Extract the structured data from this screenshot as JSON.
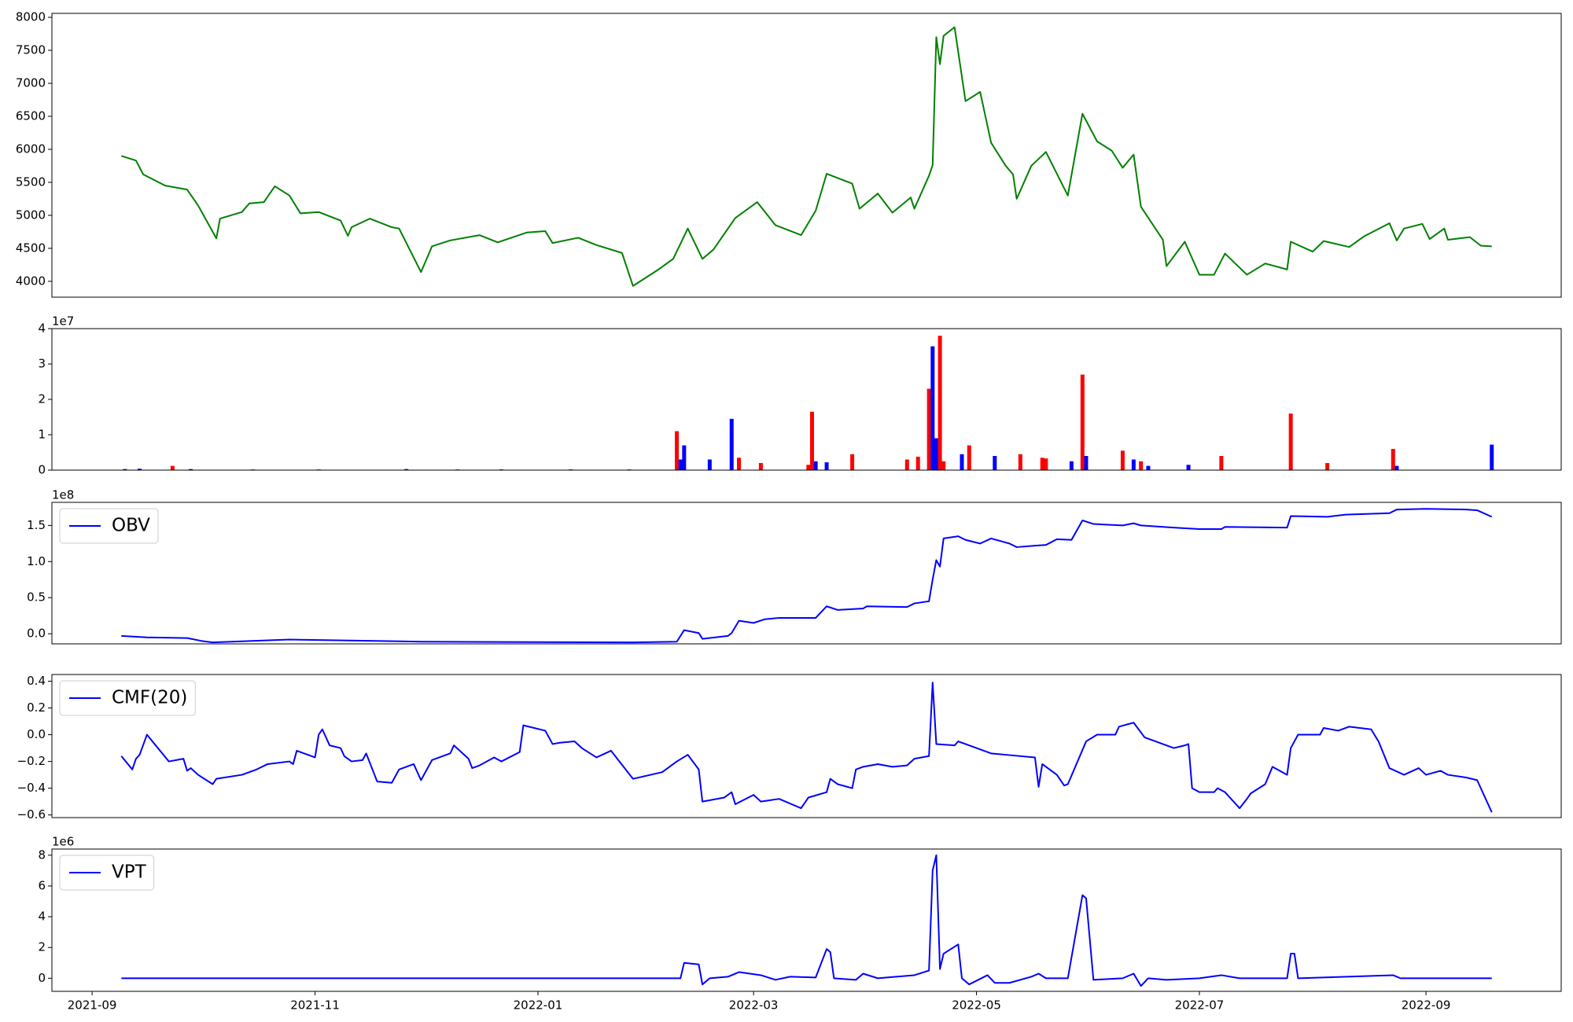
{
  "chart_data": [
    {
      "type": "line",
      "color": "#008000",
      "xlim": [
        "2021-08-21",
        "2022-10-08"
      ],
      "ylim": [
        3760,
        8060
      ],
      "yticks": [
        4000,
        4500,
        5000,
        5500,
        6000,
        6500,
        7000,
        7500,
        8000
      ],
      "x": [
        "2021-09-09",
        "2021-09-13",
        "2021-09-15",
        "2021-09-21",
        "2021-09-27",
        "2021-09-30",
        "2021-10-05",
        "2021-10-06",
        "2021-10-12",
        "2021-10-14",
        "2021-10-18",
        "2021-10-21",
        "2021-10-25",
        "2021-10-28",
        "2021-11-02",
        "2021-11-08",
        "2021-11-10",
        "2021-11-11",
        "2021-11-16",
        "2021-11-22",
        "2021-11-24",
        "2021-11-30",
        "2021-12-03",
        "2021-12-08",
        "2021-12-16",
        "2021-12-21",
        "2021-12-29",
        "2022-01-03",
        "2022-01-05",
        "2022-01-12",
        "2022-01-17",
        "2022-01-24",
        "2022-01-27",
        "2022-02-03",
        "2022-02-07",
        "2022-02-11",
        "2022-02-15",
        "2022-02-18",
        "2022-02-24",
        "2022-03-02",
        "2022-03-07",
        "2022-03-14",
        "2022-03-18",
        "2022-03-21",
        "2022-03-28",
        "2022-03-30",
        "2022-04-04",
        "2022-04-08",
        "2022-04-13",
        "2022-04-14",
        "2022-04-18",
        "2022-04-19",
        "2022-04-20",
        "2022-04-21",
        "2022-04-22",
        "2022-04-25",
        "2022-04-28",
        "2022-05-02",
        "2022-05-05",
        "2022-05-09",
        "2022-05-11",
        "2022-05-12",
        "2022-05-16",
        "2022-05-20",
        "2022-05-26",
        "2022-05-30",
        "2022-06-03",
        "2022-06-07",
        "2022-06-10",
        "2022-06-13",
        "2022-06-15",
        "2022-06-21",
        "2022-06-22",
        "2022-06-27",
        "2022-07-01",
        "2022-07-05",
        "2022-07-08",
        "2022-07-14",
        "2022-07-19",
        "2022-07-25",
        "2022-07-26",
        "2022-08-01",
        "2022-08-04",
        "2022-08-11",
        "2022-08-15",
        "2022-08-22",
        "2022-08-24",
        "2022-08-26",
        "2022-08-31",
        "2022-09-02",
        "2022-09-06",
        "2022-09-07",
        "2022-09-13",
        "2022-09-16",
        "2022-09-19"
      ],
      "values": [
        5900,
        5830,
        5620,
        5450,
        5390,
        5150,
        4650,
        4950,
        5050,
        5180,
        5200,
        5440,
        5300,
        5030,
        5050,
        4920,
        4690,
        4820,
        4950,
        4820,
        4800,
        4140,
        4530,
        4620,
        4700,
        4590,
        4740,
        4760,
        4580,
        4660,
        4550,
        4430,
        3930,
        4180,
        4340,
        4800,
        4340,
        4480,
        4960,
        5200,
        4850,
        4700,
        5070,
        5630,
        5480,
        5100,
        5330,
        5040,
        5270,
        5100,
        5600,
        5760,
        7700,
        7290,
        7720,
        7850,
        6730,
        6870,
        6100,
        5750,
        5620,
        5250,
        5750,
        5960,
        5300,
        6540,
        6120,
        5980,
        5720,
        5920,
        5130,
        4630,
        4230,
        4600,
        4100,
        4100,
        4420,
        4100,
        4270,
        4180,
        4600,
        4450,
        4610,
        4520,
        4680,
        4880,
        4620,
        4800,
        4870,
        4640,
        4800,
        4630,
        4670,
        4540,
        4530
      ]
    },
    {
      "type": "bar",
      "offset_text": "1e7",
      "xlim": [
        "2021-08-21",
        "2022-10-08"
      ],
      "ylim": [
        0,
        4
      ],
      "yticks": [
        0,
        1,
        2,
        3,
        4
      ],
      "x": [
        "2021-09-10",
        "2021-09-14",
        "2021-09-23",
        "2021-09-28",
        "2021-10-15",
        "2021-11-02",
        "2021-11-26",
        "2021-12-10",
        "2021-12-22",
        "2022-01-10",
        "2022-01-26",
        "2022-02-08",
        "2022-02-09",
        "2022-02-10",
        "2022-02-17",
        "2022-02-23",
        "2022-02-25",
        "2022-03-03",
        "2022-03-16",
        "2022-03-17",
        "2022-03-18",
        "2022-03-21",
        "2022-03-28",
        "2022-04-12",
        "2022-04-15",
        "2022-04-18",
        "2022-04-19",
        "2022-04-20",
        "2022-04-21",
        "2022-04-22",
        "2022-04-27",
        "2022-04-29",
        "2022-05-06",
        "2022-05-13",
        "2022-05-19",
        "2022-05-20",
        "2022-05-27",
        "2022-05-30",
        "2022-05-31",
        "2022-06-10",
        "2022-06-13",
        "2022-06-15",
        "2022-06-17",
        "2022-06-28",
        "2022-07-07",
        "2022-07-26",
        "2022-08-05",
        "2022-08-23",
        "2022-08-24",
        "2022-09-19"
      ],
      "values": [
        0.03,
        0.04,
        0.12,
        0.03,
        0.02,
        0.02,
        0.03,
        0.02,
        0.02,
        0.02,
        0.02,
        1.1,
        0.3,
        0.7,
        0.3,
        1.45,
        0.35,
        0.2,
        0.15,
        1.65,
        0.25,
        0.22,
        0.45,
        0.3,
        0.38,
        2.3,
        3.5,
        0.9,
        3.8,
        0.25,
        0.45,
        0.7,
        0.4,
        0.45,
        0.35,
        0.33,
        0.25,
        2.7,
        0.4,
        0.55,
        0.3,
        0.25,
        0.12,
        0.15,
        0.4,
        1.6,
        0.2,
        0.6,
        0.12,
        0.72
      ],
      "colors": [
        "#0000ff",
        "#0000ff",
        "#ff0000",
        "#0000ff",
        "#ff0000",
        "#ff0000",
        "#0000ff",
        "#ff0000",
        "#0000ff",
        "#0000ff",
        "#ff0000",
        "#ff0000",
        "#0000ff",
        "#0000ff",
        "#0000ff",
        "#0000ff",
        "#ff0000",
        "#ff0000",
        "#ff0000",
        "#ff0000",
        "#0000ff",
        "#0000ff",
        "#ff0000",
        "#ff0000",
        "#ff0000",
        "#ff0000",
        "#0000ff",
        "#0000ff",
        "#ff0000",
        "#ff0000",
        "#0000ff",
        "#ff0000",
        "#0000ff",
        "#ff0000",
        "#ff0000",
        "#ff0000",
        "#0000ff",
        "#ff0000",
        "#0000ff",
        "#ff0000",
        "#0000ff",
        "#ff0000",
        "#0000ff",
        "#0000ff",
        "#ff0000",
        "#ff0000",
        "#ff0000",
        "#ff0000",
        "#0000ff",
        "#0000ff"
      ]
    },
    {
      "type": "line",
      "offset_text": "1e8",
      "legend": "upper left",
      "xlim": [
        "2021-08-21",
        "2022-10-08"
      ],
      "ylim": [
        -0.14,
        1.82
      ],
      "yticks": [
        {
          "value": 0,
          "label": "0.0"
        },
        0.5,
        {
          "value": 1,
          "label": "1.0"
        },
        1.5
      ],
      "x": [
        "2021-09-09",
        "2021-09-16",
        "2021-09-27",
        "2021-10-01",
        "2021-10-04",
        "2021-10-25",
        "2021-11-30",
        "2022-01-27",
        "2022-02-08",
        "2022-02-10",
        "2022-02-14",
        "2022-02-15",
        "2022-02-22",
        "2022-02-23",
        "2022-02-25",
        "2022-03-01",
        "2022-03-04",
        "2022-03-08",
        "2022-03-18",
        "2022-03-21",
        "2022-03-24",
        "2022-03-31",
        "2022-04-01",
        "2022-04-12",
        "2022-04-14",
        "2022-04-18",
        "2022-04-19",
        "2022-04-20",
        "2022-04-21",
        "2022-04-22",
        "2022-04-26",
        "2022-04-28",
        "2022-05-02",
        "2022-05-05",
        "2022-05-10",
        "2022-05-12",
        "2022-05-17",
        "2022-05-20",
        "2022-05-23",
        "2022-05-27",
        "2022-05-30",
        "2022-06-02",
        "2022-06-10",
        "2022-06-13",
        "2022-06-15",
        "2022-06-24",
        "2022-07-01",
        "2022-07-07",
        "2022-07-08",
        "2022-07-25",
        "2022-07-26",
        "2022-08-05",
        "2022-08-10",
        "2022-08-22",
        "2022-08-24",
        "2022-09-01",
        "2022-09-12",
        "2022-09-15",
        "2022-09-19"
      ],
      "series": [
        {
          "name": "OBV",
          "color": "#0000ff",
          "values": [
            -0.03,
            -0.05,
            -0.06,
            -0.1,
            -0.12,
            -0.08,
            -0.11,
            -0.12,
            -0.11,
            0.05,
            0.01,
            -0.07,
            -0.03,
            0.01,
            0.18,
            0.15,
            0.2,
            0.22,
            0.22,
            0.38,
            0.33,
            0.35,
            0.38,
            0.37,
            0.42,
            0.45,
            0.75,
            1.02,
            0.93,
            1.32,
            1.35,
            1.3,
            1.25,
            1.32,
            1.25,
            1.2,
            1.22,
            1.23,
            1.31,
            1.3,
            1.57,
            1.52,
            1.5,
            1.53,
            1.5,
            1.47,
            1.45,
            1.45,
            1.48,
            1.47,
            1.63,
            1.62,
            1.65,
            1.67,
            1.72,
            1.73,
            1.72,
            1.71,
            1.62
          ]
        }
      ]
    },
    {
      "type": "line",
      "legend": "upper left",
      "xlim": [
        "2021-08-21",
        "2022-10-08"
      ],
      "ylim": [
        -0.62,
        0.45
      ],
      "yticks": [
        {
          "value": -0.6,
          "label": "−0.6"
        },
        {
          "value": -0.4,
          "label": "−0.4"
        },
        {
          "value": -0.2,
          "label": "−0.2"
        },
        {
          "value": 0,
          "label": "0.0"
        },
        0.2,
        0.4
      ],
      "x": [
        "2021-09-09",
        "2021-09-12",
        "2021-09-13",
        "2021-09-14",
        "2021-09-16",
        "2021-09-22",
        "2021-09-26",
        "2021-09-27",
        "2021-09-28",
        "2021-09-30",
        "2021-10-04",
        "2021-10-05",
        "2021-10-12",
        "2021-10-16",
        "2021-10-19",
        "2021-10-25",
        "2021-10-26",
        "2021-10-27",
        "2021-11-01",
        "2021-11-02",
        "2021-11-03",
        "2021-11-05",
        "2021-11-08",
        "2021-11-09",
        "2021-11-11",
        "2021-11-14",
        "2021-11-15",
        "2021-11-18",
        "2021-11-22",
        "2021-11-24",
        "2021-11-28",
        "2021-11-30",
        "2021-12-03",
        "2021-12-08",
        "2021-12-09",
        "2021-12-13",
        "2021-12-14",
        "2021-12-16",
        "2021-12-20",
        "2021-12-22",
        "2021-12-27",
        "2021-12-28",
        "2022-01-03",
        "2022-01-05",
        "2022-01-07",
        "2022-01-11",
        "2022-01-13",
        "2022-01-17",
        "2022-01-21",
        "2022-01-27",
        "2022-02-04",
        "2022-02-08",
        "2022-02-11",
        "2022-02-14",
        "2022-02-15",
        "2022-02-21",
        "2022-02-23",
        "2022-02-24",
        "2022-03-01",
        "2022-03-03",
        "2022-03-08",
        "2022-03-14",
        "2022-03-16",
        "2022-03-21",
        "2022-03-22",
        "2022-03-24",
        "2022-03-28",
        "2022-03-29",
        "2022-03-31",
        "2022-04-04",
        "2022-04-08",
        "2022-04-12",
        "2022-04-14",
        "2022-04-18",
        "2022-04-19",
        "2022-04-20",
        "2022-04-25",
        "2022-04-26",
        "2022-05-05",
        "2022-05-09",
        "2022-05-17",
        "2022-05-18",
        "2022-05-19",
        "2022-05-23",
        "2022-05-25",
        "2022-05-26",
        "2022-05-31",
        "2022-06-03",
        "2022-06-08",
        "2022-06-09",
        "2022-06-13",
        "2022-06-16",
        "2022-06-21",
        "2022-06-24",
        "2022-06-27",
        "2022-06-28",
        "2022-06-29",
        "2022-07-01",
        "2022-07-05",
        "2022-07-06",
        "2022-07-08",
        "2022-07-12",
        "2022-07-14",
        "2022-07-15",
        "2022-07-19",
        "2022-07-21",
        "2022-07-25",
        "2022-07-26",
        "2022-07-28",
        "2022-08-03",
        "2022-08-04",
        "2022-08-08",
        "2022-08-11",
        "2022-08-17",
        "2022-08-19",
        "2022-08-22",
        "2022-08-26",
        "2022-08-30",
        "2022-09-01",
        "2022-09-05",
        "2022-09-07",
        "2022-09-12",
        "2022-09-15",
        "2022-09-19"
      ],
      "series": [
        {
          "name": "CMF(20)",
          "color": "#0000ff",
          "values": [
            -0.16,
            -0.26,
            -0.18,
            -0.15,
            0.0,
            -0.2,
            -0.18,
            -0.27,
            -0.25,
            -0.3,
            -0.37,
            -0.33,
            -0.3,
            -0.26,
            -0.22,
            -0.2,
            -0.22,
            -0.12,
            -0.17,
            0.0,
            0.04,
            -0.08,
            -0.1,
            -0.16,
            -0.2,
            -0.19,
            -0.14,
            -0.35,
            -0.36,
            -0.26,
            -0.22,
            -0.34,
            -0.19,
            -0.14,
            -0.08,
            -0.18,
            -0.25,
            -0.23,
            -0.17,
            -0.2,
            -0.13,
            0.07,
            0.03,
            -0.07,
            -0.06,
            -0.05,
            -0.1,
            -0.17,
            -0.12,
            -0.33,
            -0.28,
            -0.2,
            -0.15,
            -0.26,
            -0.5,
            -0.47,
            -0.43,
            -0.52,
            -0.45,
            -0.5,
            -0.48,
            -0.55,
            -0.47,
            -0.43,
            -0.33,
            -0.37,
            -0.4,
            -0.26,
            -0.24,
            -0.22,
            -0.24,
            -0.23,
            -0.18,
            -0.16,
            0.39,
            -0.07,
            -0.08,
            -0.05,
            -0.14,
            -0.15,
            -0.17,
            -0.39,
            -0.22,
            -0.3,
            -0.38,
            -0.37,
            -0.05,
            0.0,
            0.0,
            0.06,
            0.09,
            -0.02,
            -0.07,
            -0.1,
            -0.08,
            -0.07,
            -0.4,
            -0.43,
            -0.43,
            -0.4,
            -0.43,
            -0.55,
            -0.48,
            -0.44,
            -0.37,
            -0.24,
            -0.3,
            -0.1,
            0.0,
            0.0,
            0.05,
            0.03,
            0.06,
            0.04,
            -0.05,
            -0.25,
            -0.3,
            -0.25,
            -0.3,
            -0.27,
            -0.3,
            -0.32,
            -0.34,
            -0.58
          ]
        }
      ]
    },
    {
      "type": "line",
      "offset_text": "1e6",
      "legend": "upper left",
      "xlim": [
        "2021-08-21",
        "2022-10-08"
      ],
      "ylim": [
        -0.85,
        8.4
      ],
      "yticks": [
        0,
        2,
        4,
        6,
        8
      ],
      "xticks": [
        {
          "value": "2021-09-01",
          "label": "2021-09"
        },
        {
          "value": "2021-11-01",
          "label": "2021-11"
        },
        {
          "value": "2022-01-01",
          "label": "2022-01"
        },
        {
          "value": "2022-03-01",
          "label": "2022-03"
        },
        {
          "value": "2022-05-01",
          "label": "2022-05"
        },
        {
          "value": "2022-07-01",
          "label": "2022-07"
        },
        {
          "value": "2022-09-01",
          "label": "2022-09"
        }
      ],
      "x": [
        "2021-09-09",
        "2022-02-09",
        "2022-02-10",
        "2022-02-14",
        "2022-02-15",
        "2022-02-17",
        "2022-02-22",
        "2022-02-25",
        "2022-03-03",
        "2022-03-07",
        "2022-03-11",
        "2022-03-18",
        "2022-03-21",
        "2022-03-22",
        "2022-03-23",
        "2022-03-29",
        "2022-03-31",
        "2022-04-04",
        "2022-04-14",
        "2022-04-18",
        "2022-04-19",
        "2022-04-20",
        "2022-04-21",
        "2022-04-22",
        "2022-04-26",
        "2022-04-27",
        "2022-04-29",
        "2022-05-04",
        "2022-05-06",
        "2022-05-10",
        "2022-05-16",
        "2022-05-18",
        "2022-05-20",
        "2022-05-26",
        "2022-05-30",
        "2022-05-31",
        "2022-06-02",
        "2022-06-10",
        "2022-06-13",
        "2022-06-15",
        "2022-06-17",
        "2022-06-22",
        "2022-07-01",
        "2022-07-07",
        "2022-07-12",
        "2022-07-25",
        "2022-07-26",
        "2022-07-27",
        "2022-07-28",
        "2022-08-23",
        "2022-08-25",
        "2022-09-19"
      ],
      "series": [
        {
          "name": "VPT",
          "color": "#0000ff",
          "values": [
            0,
            0,
            1.0,
            0.9,
            -0.4,
            0.0,
            0.1,
            0.4,
            0.2,
            -0.1,
            0.1,
            0.05,
            1.9,
            1.7,
            0.0,
            -0.1,
            0.3,
            0.0,
            0.2,
            0.5,
            7.0,
            8.0,
            0.6,
            1.6,
            2.2,
            0.0,
            -0.4,
            0.2,
            -0.3,
            -0.3,
            0.1,
            0.3,
            0.0,
            0.0,
            5.4,
            5.2,
            -0.1,
            0.0,
            0.3,
            -0.5,
            0.0,
            -0.1,
            0.0,
            0.2,
            0.0,
            0.0,
            1.6,
            1.6,
            0.0,
            0.2,
            0.0,
            0.0
          ]
        }
      ]
    }
  ]
}
